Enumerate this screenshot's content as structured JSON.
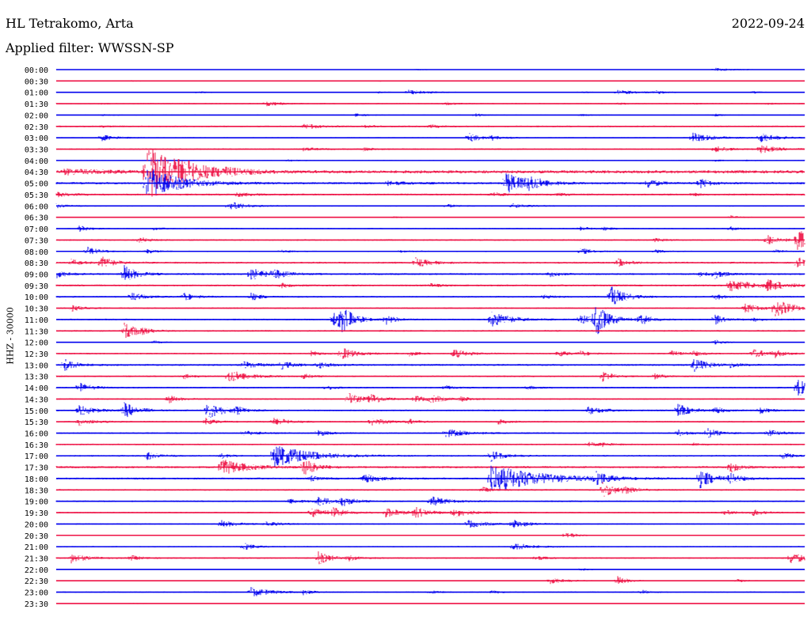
{
  "header": {
    "station": "HL Tetrakomo, Arta",
    "date": "2022-09-24",
    "filter": "Applied filter: WWSSN-SP",
    "channel_label": "HHZ - 30000"
  },
  "colors": {
    "even_row": "#0000ee",
    "odd_row": "#ee1144"
  },
  "chart_data": {
    "type": "seismogram",
    "title": "HL Tetrakomo, Arta",
    "subtitle": "Applied filter: WWSSN-SP",
    "date": "2022-09-24",
    "ylabel": "HHZ - 30000",
    "row_labels": [
      "00:00",
      "00:30",
      "01:00",
      "01:30",
      "02:00",
      "02:30",
      "03:00",
      "03:30",
      "04:00",
      "04:30",
      "05:00",
      "05:30",
      "06:00",
      "06:30",
      "07:00",
      "07:30",
      "08:00",
      "08:30",
      "09:00",
      "09:30",
      "10:00",
      "10:30",
      "11:00",
      "11:30",
      "12:00",
      "12:30",
      "13:00",
      "13:30",
      "14:00",
      "14:30",
      "15:00",
      "15:30",
      "16:00",
      "16:30",
      "17:00",
      "17:30",
      "18:00",
      "18:30",
      "19:00",
      "19:30",
      "20:00",
      "20:30",
      "21:00",
      "21:30",
      "22:00",
      "22:30",
      "23:00",
      "23:30"
    ],
    "noise": [
      0.4,
      0.5,
      0.6,
      0.8,
      0.6,
      1.0,
      0.8,
      1.0,
      0.6,
      2.0,
      1.4,
      1.2,
      0.8,
      0.6,
      0.8,
      1.0,
      0.8,
      1.2,
      1.2,
      1.2,
      1.0,
      1.0,
      1.0,
      1.0,
      0.6,
      1.0,
      1.2,
      1.0,
      1.0,
      1.0,
      1.0,
      1.0,
      1.0,
      1.0,
      1.0,
      1.4,
      1.2,
      1.0,
      1.0,
      1.0,
      0.8,
      0.6,
      0.8,
      1.0,
      0.6,
      0.6,
      0.8,
      0.4
    ],
    "events": [
      [
        [
          0.48,
          0.8,
          1
        ],
        [
          0.88,
          2,
          2
        ]
      ],
      [
        [
          0.1,
          0.6,
          1
        ],
        [
          0.43,
          0.5,
          1
        ]
      ],
      [
        [
          0.19,
          1.2,
          1
        ],
        [
          0.43,
          1.2,
          1
        ],
        [
          0.47,
          3,
          2
        ],
        [
          0.7,
          0.8,
          1
        ],
        [
          0.75,
          3,
          2
        ],
        [
          0.8,
          2,
          1
        ],
        [
          0.93,
          1.2,
          1
        ]
      ],
      [
        [
          0.06,
          0.7,
          1
        ],
        [
          0.28,
          3,
          1.4
        ],
        [
          0.52,
          2,
          1
        ],
        [
          0.75,
          1.2,
          1
        ],
        [
          0.85,
          0.8,
          1
        ],
        [
          0.95,
          0.8,
          1
        ]
      ],
      [
        [
          0.06,
          1,
          1
        ],
        [
          0.4,
          2,
          1
        ],
        [
          0.56,
          2,
          1
        ],
        [
          0.7,
          1.2,
          1
        ],
        [
          0.88,
          1.4,
          1
        ]
      ],
      [
        [
          0.06,
          1,
          1
        ],
        [
          0.33,
          2.5,
          1.6
        ],
        [
          0.34,
          1.2,
          1
        ],
        [
          0.41,
          1.8,
          1
        ],
        [
          0.5,
          1.8,
          1.2
        ]
      ],
      [
        [
          0.06,
          4,
          1.4
        ],
        [
          0.55,
          6,
          1.2
        ],
        [
          0.58,
          3,
          1.2
        ],
        [
          0.85,
          6,
          2
        ],
        [
          0.94,
          6,
          1.6
        ]
      ],
      [
        [
          0.33,
          2,
          1.4
        ],
        [
          0.41,
          2,
          1
        ],
        [
          0.88,
          4,
          1.4
        ],
        [
          0.94,
          5,
          1.6
        ]
      ],
      [
        [
          0.31,
          1.2,
          1
        ],
        [
          0.88,
          1,
          1
        ],
        [
          0.92,
          0.8,
          1
        ]
      ],
      [
        [
          0.01,
          3,
          4
        ],
        [
          0.12,
          40,
          2.5
        ],
        [
          0.16,
          12,
          3
        ],
        [
          0.22,
          3,
          2
        ]
      ],
      [
        [
          0.12,
          22,
          3
        ],
        [
          0.44,
          2.5,
          2
        ],
        [
          0.6,
          14,
          2
        ],
        [
          0.63,
          7,
          1.4
        ],
        [
          0.79,
          6,
          1
        ],
        [
          0.86,
          6,
          1
        ]
      ],
      [
        [
          0.0,
          2.5,
          1.4
        ],
        [
          0.24,
          2.5,
          1.5
        ],
        [
          0.58,
          2.5,
          1.2
        ],
        [
          0.67,
          2,
          1
        ],
        [
          0.85,
          1.5,
          1
        ]
      ],
      [
        [
          0.0,
          3,
          1
        ],
        [
          0.23,
          6,
          1.6
        ],
        [
          0.52,
          2.5,
          1
        ],
        [
          0.61,
          3,
          1.4
        ]
      ],
      [
        [
          0.45,
          1.2,
          1
        ],
        [
          0.9,
          2.5,
          1
        ]
      ],
      [
        [
          0.03,
          4,
          1
        ],
        [
          0.13,
          1.5,
          1
        ],
        [
          0.7,
          3,
          1
        ],
        [
          0.73,
          2,
          1
        ],
        [
          0.9,
          2.5,
          1
        ]
      ],
      [
        [
          0.11,
          4,
          1
        ],
        [
          0.8,
          2,
          1
        ],
        [
          0.95,
          6,
          1.4
        ],
        [
          0.99,
          14,
          1.4
        ]
      ],
      [
        [
          0.04,
          6,
          1.2
        ],
        [
          0.12,
          3,
          1
        ],
        [
          0.3,
          2,
          1
        ],
        [
          0.46,
          1.5,
          1
        ],
        [
          0.7,
          4,
          1.2
        ],
        [
          0.8,
          2,
          1
        ],
        [
          0.96,
          2,
          1
        ]
      ],
      [
        [
          0.02,
          4,
          1
        ],
        [
          0.06,
          8,
          1.2
        ],
        [
          0.48,
          6,
          1.4
        ],
        [
          0.75,
          5,
          1.2
        ],
        [
          0.99,
          7,
          1
        ]
      ],
      [
        [
          0.0,
          5,
          1
        ],
        [
          0.09,
          12,
          1.2
        ],
        [
          0.26,
          8,
          1.4
        ],
        [
          0.29,
          5,
          1.4
        ],
        [
          0.66,
          3,
          1
        ],
        [
          0.86,
          3,
          1
        ],
        [
          0.88,
          5,
          1
        ]
      ],
      [
        [
          0.3,
          3,
          1
        ],
        [
          0.5,
          2,
          1
        ],
        [
          0.9,
          7,
          2.5
        ],
        [
          0.95,
          6,
          2
        ]
      ],
      [
        [
          0.1,
          5,
          1.4
        ],
        [
          0.17,
          5,
          1.2
        ],
        [
          0.26,
          5,
          1
        ],
        [
          0.65,
          3,
          1
        ],
        [
          0.74,
          14,
          1.4
        ],
        [
          0.88,
          4,
          1
        ]
      ],
      [
        [
          0.02,
          4,
          1
        ],
        [
          0.92,
          6,
          1.4
        ],
        [
          0.96,
          12,
          1.6
        ]
      ],
      [
        [
          0.37,
          8,
          1.4
        ],
        [
          0.38,
          16,
          1.2
        ],
        [
          0.44,
          6,
          1
        ],
        [
          0.58,
          10,
          2
        ],
        [
          0.7,
          6,
          1.4
        ],
        [
          0.72,
          20,
          1.4
        ],
        [
          0.78,
          8,
          1
        ],
        [
          0.88,
          6,
          1
        ],
        [
          0.93,
          3,
          1
        ]
      ],
      [
        [
          0.09,
          10,
          1.4
        ],
        [
          0.11,
          3,
          1
        ]
      ],
      [
        [
          0.13,
          2,
          1
        ],
        [
          0.88,
          3,
          1
        ]
      ],
      [
        [
          0.34,
          3,
          1
        ],
        [
          0.38,
          8,
          1.4
        ],
        [
          0.47,
          3,
          1
        ],
        [
          0.53,
          6,
          1.4
        ],
        [
          0.67,
          4,
          1
        ],
        [
          0.7,
          3,
          1
        ],
        [
          0.82,
          4,
          1
        ],
        [
          0.85,
          3,
          1
        ],
        [
          0.93,
          6,
          1.4
        ],
        [
          0.96,
          4,
          1
        ]
      ],
      [
        [
          0.01,
          8,
          1.2
        ],
        [
          0.25,
          4,
          1.6
        ],
        [
          0.3,
          5,
          1.2
        ],
        [
          0.35,
          4,
          1.2
        ],
        [
          0.85,
          9,
          1.4
        ],
        [
          0.9,
          3,
          1
        ]
      ],
      [
        [
          0.17,
          3,
          1
        ],
        [
          0.23,
          8,
          2
        ],
        [
          0.33,
          3,
          1
        ],
        [
          0.73,
          7,
          1
        ],
        [
          0.8,
          3,
          1
        ]
      ],
      [
        [
          0.03,
          7,
          1.2
        ],
        [
          0.36,
          3,
          1
        ],
        [
          0.52,
          2.5,
          1
        ],
        [
          0.63,
          2,
          1
        ],
        [
          0.99,
          12,
          1.2
        ]
      ],
      [
        [
          0.15,
          5,
          1
        ],
        [
          0.39,
          8,
          1.4
        ],
        [
          0.42,
          6,
          1.2
        ],
        [
          0.48,
          4,
          1
        ],
        [
          0.5,
          5,
          1.2
        ],
        [
          0.54,
          3,
          1
        ]
      ],
      [
        [
          0.03,
          7,
          1.6
        ],
        [
          0.09,
          10,
          1.4
        ],
        [
          0.2,
          12,
          1.6
        ],
        [
          0.24,
          5,
          1
        ],
        [
          0.71,
          5,
          1.6
        ],
        [
          0.83,
          8,
          1.4
        ],
        [
          0.88,
          4,
          1
        ],
        [
          0.94,
          4,
          1
        ]
      ],
      [
        [
          0.03,
          5,
          1.4
        ],
        [
          0.2,
          4,
          1
        ],
        [
          0.29,
          6,
          1.4
        ],
        [
          0.42,
          5,
          1.6
        ],
        [
          0.47,
          3,
          1
        ],
        [
          0.59,
          3,
          1
        ]
      ],
      [
        [
          0.25,
          3,
          1.4
        ],
        [
          0.35,
          4,
          1
        ],
        [
          0.52,
          5,
          2.2
        ],
        [
          0.83,
          4,
          1.2
        ],
        [
          0.87,
          6,
          1.2
        ],
        [
          0.95,
          5,
          1.2
        ]
      ],
      [
        [
          0.71,
          3,
          1
        ],
        [
          0.73,
          2,
          1
        ],
        [
          0.85,
          2,
          1
        ]
      ],
      [
        [
          0.12,
          5,
          1.2
        ],
        [
          0.22,
          3,
          1
        ],
        [
          0.29,
          15,
          3.5
        ],
        [
          0.58,
          7,
          1.4
        ],
        [
          0.97,
          5,
          1
        ]
      ],
      [
        [
          0.22,
          10,
          2.5
        ],
        [
          0.33,
          12,
          1.2
        ],
        [
          0.9,
          7,
          1
        ]
      ],
      [
        [
          0.34,
          3,
          1
        ],
        [
          0.41,
          6,
          1.6
        ],
        [
          0.58,
          18,
          5
        ],
        [
          0.72,
          8,
          1.2
        ],
        [
          0.86,
          12,
          1.4
        ],
        [
          0.9,
          6,
          1
        ]
      ],
      [
        [
          0.57,
          3,
          1
        ],
        [
          0.73,
          9,
          1.4
        ],
        [
          0.76,
          5,
          1
        ]
      ],
      [
        [
          0.31,
          3,
          1.6
        ],
        [
          0.35,
          5,
          1.6
        ],
        [
          0.38,
          6,
          1.2
        ],
        [
          0.5,
          6,
          1.8
        ]
      ],
      [
        [
          0.34,
          6,
          1.8
        ],
        [
          0.37,
          5,
          1.2
        ],
        [
          0.44,
          6,
          1.6
        ],
        [
          0.48,
          7,
          1.2
        ],
        [
          0.53,
          7,
          1.4
        ],
        [
          0.89,
          4,
          1
        ],
        [
          0.93,
          4,
          1
        ]
      ],
      [
        [
          0.22,
          5,
          1.4
        ],
        [
          0.28,
          3,
          1.6
        ],
        [
          0.55,
          5,
          1.8
        ],
        [
          0.61,
          5,
          1.6
        ]
      ],
      [
        [
          0.68,
          5,
          1
        ]
      ],
      [
        [
          0.25,
          5,
          1
        ],
        [
          0.61,
          5,
          1.8
        ]
      ],
      [
        [
          0.02,
          6,
          1.4
        ],
        [
          0.1,
          3,
          1
        ],
        [
          0.35,
          8,
          1.2
        ],
        [
          0.39,
          3,
          1
        ],
        [
          0.64,
          3,
          1
        ],
        [
          0.98,
          7,
          1.8
        ]
      ],
      [
        [
          0.7,
          1.5,
          1
        ]
      ],
      [
        [
          0.66,
          4,
          1.6
        ],
        [
          0.75,
          6,
          1
        ],
        [
          0.91,
          2,
          1
        ]
      ],
      [
        [
          0.26,
          6,
          2
        ],
        [
          0.33,
          3,
          1
        ],
        [
          0.5,
          2,
          1
        ],
        [
          0.58,
          2,
          1
        ],
        [
          0.78,
          3,
          1
        ]
      ],
      [
        [
          0.1,
          1,
          1
        ]
      ]
    ]
  }
}
